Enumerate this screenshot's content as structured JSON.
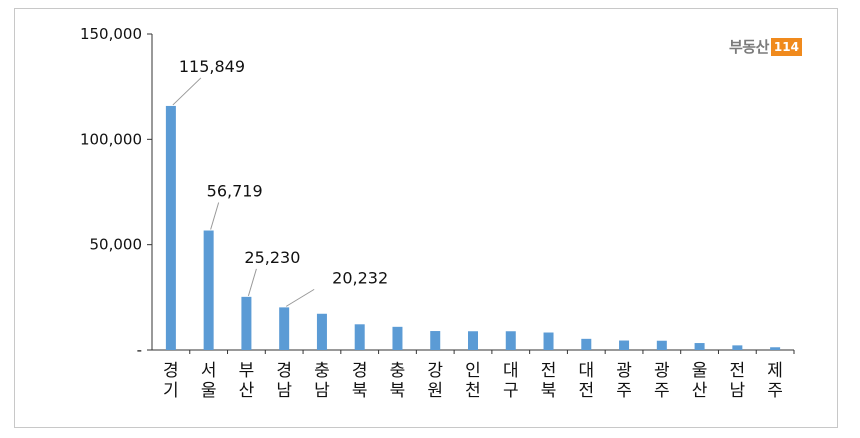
{
  "brand": {
    "logo_text": "부동산",
    "logo_badge": "114"
  },
  "colors": {
    "bar": "#5b9bd5",
    "axis": "#333333",
    "leader": "#999999"
  },
  "chart_data": {
    "type": "bar",
    "title": "",
    "xlabel": "",
    "ylabel": "",
    "ylim": [
      0,
      150000
    ],
    "yticks": [
      0,
      50000,
      100000,
      150000
    ],
    "ytick_labels": [
      "-",
      "50,000",
      "100,000",
      "150,000"
    ],
    "grid": false,
    "categories": [
      "경기",
      "서울",
      "부산",
      "경남",
      "충남",
      "경북",
      "충북",
      "강원",
      "인천",
      "대구",
      "전북",
      "대전",
      "광주",
      "광주",
      "울산",
      "전남",
      "제주"
    ],
    "values": [
      115849,
      56719,
      25230,
      20232,
      17200,
      12200,
      11000,
      9000,
      8900,
      8900,
      8300,
      5300,
      4500,
      4400,
      3300,
      2200,
      1300
    ],
    "data_labels": [
      {
        "index": 0,
        "text": "115,849"
      },
      {
        "index": 1,
        "text": "56,719"
      },
      {
        "index": 2,
        "text": "25,230"
      },
      {
        "index": 3,
        "text": "20,232"
      }
    ]
  }
}
